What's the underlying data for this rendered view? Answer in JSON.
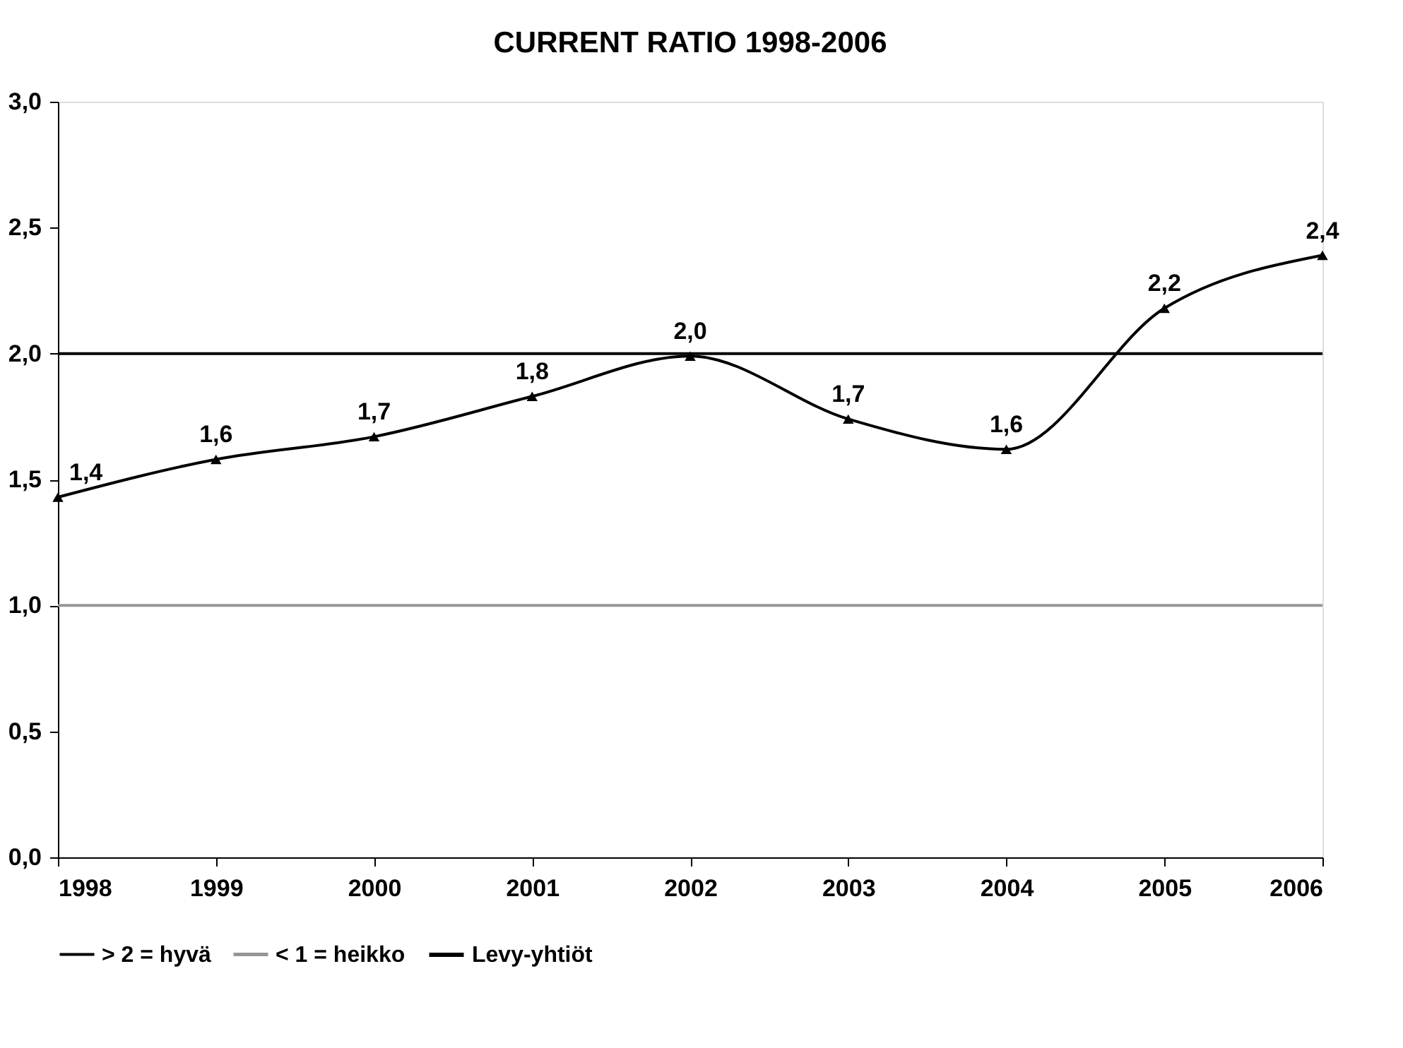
{
  "chart_data": {
    "type": "line",
    "title": "CURRENT RATIO 1998-2006",
    "x": [
      1998,
      1999,
      2000,
      2001,
      2002,
      2003,
      2004,
      2005,
      2006
    ],
    "xlim": [
      1998,
      2006
    ],
    "xticks": [
      1998,
      1999,
      2000,
      2001,
      2002,
      2003,
      2004,
      2005,
      2006
    ],
    "ylim": [
      0,
      3
    ],
    "yticks": [
      {
        "value": 0,
        "label": "0,0"
      },
      {
        "value": 0.5,
        "label": "0,5"
      },
      {
        "value": 1,
        "label": "1,0"
      },
      {
        "value": 1.5,
        "label": "1,5"
      },
      {
        "value": 2,
        "label": "2,0"
      },
      {
        "value": 2.5,
        "label": "2,5"
      },
      {
        "value": 3,
        "label": "3,0"
      }
    ],
    "grid": false,
    "legend": "bottom",
    "series": [
      {
        "name": "> 2 = hyvä",
        "color": "#000000",
        "marker": "none",
        "values": [
          2,
          2,
          2,
          2,
          2,
          2,
          2,
          2,
          2
        ]
      },
      {
        "name": "< 1 = heikko",
        "color": "#969696",
        "marker": "none",
        "values": [
          1,
          1,
          1,
          1,
          1,
          1,
          1,
          1,
          1
        ]
      },
      {
        "name": "Levy-yhtiöt",
        "color": "#000000",
        "marker": "triangle",
        "values": [
          1.43,
          1.58,
          1.67,
          1.83,
          1.99,
          1.74,
          1.62,
          2.18,
          2.39
        ],
        "value_labels": [
          "1,4",
          "1,6",
          "1,7",
          "1,8",
          "2,0",
          "1,7",
          "1,6",
          "2,2",
          "2,4"
        ]
      }
    ]
  }
}
